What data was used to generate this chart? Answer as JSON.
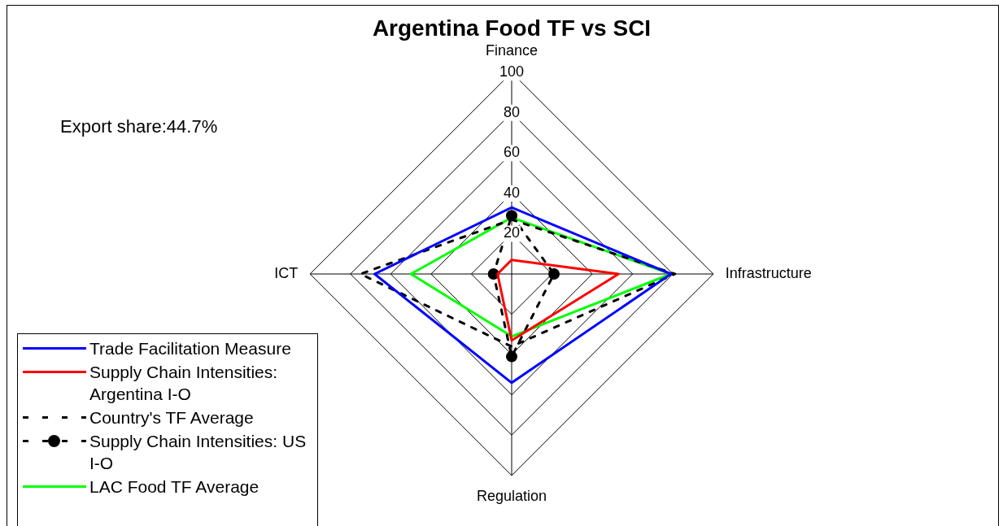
{
  "chart_data": {
    "type": "radar",
    "title": "Argentina Food TF vs SCI",
    "annotations": [
      "Export share:44.7%"
    ],
    "categories": [
      "Finance",
      "Infrastructure",
      "Regulation",
      "ICT"
    ],
    "ylim": [
      0,
      100
    ],
    "yticks": [
      20,
      40,
      60,
      80,
      100
    ],
    "grid": true,
    "legend": "bottom left",
    "series": [
      {
        "name": "Trade Facilitation Measure",
        "color": "#0000ff",
        "values": [
          33,
          79,
          54,
          68
        ],
        "line_style": "solid",
        "marker": "none"
      },
      {
        "name": "Supply Chain Intensities: Argentina I-O",
        "color": "#ff0000",
        "values": [
          7,
          53,
          33,
          7
        ],
        "line_style": "solid",
        "marker": "none"
      },
      {
        "name": "Country's TF Average",
        "color": "#000000",
        "values": [
          27,
          81,
          36,
          75
        ],
        "line_style": "dashed",
        "marker": "none"
      },
      {
        "name": "Supply Chain Intensities: US I-O",
        "color": "#000000",
        "values": [
          29,
          21,
          41,
          9
        ],
        "line_style": "dashed",
        "marker": "circle"
      },
      {
        "name": "LAC Food TF Average",
        "color": "#00ff00",
        "values": [
          28,
          79,
          31,
          50
        ],
        "line_style": "solid",
        "marker": "none"
      }
    ]
  }
}
